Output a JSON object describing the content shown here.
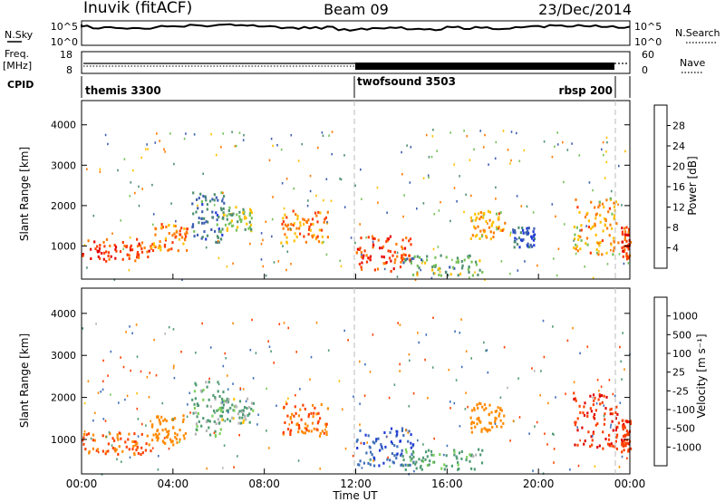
{
  "header": {
    "station": "Inuvik (fitACF)",
    "beam": "Beam 09",
    "date": "23/Dec/2014"
  },
  "top_panels": {
    "nsky_label": "N.Sky",
    "nsky_ticks": [
      "10^5",
      "10^0"
    ],
    "nsearch_label": "N.Search",
    "nsearch_ticks": [
      "10^5",
      "10^0"
    ],
    "freq_label": "Freq.",
    "freq_unit": "[MHz]",
    "freq_ticks": [
      "18",
      "8"
    ],
    "nave_label": "Nave",
    "nave_ticks": [
      "60",
      "0"
    ],
    "cpid_label": "CPID",
    "cpid_segments": [
      {
        "name": "themis 3300",
        "start_h": 0,
        "end_h": 12
      },
      {
        "name": "twofsound 3503",
        "start_h": 12,
        "end_h": 23.7
      },
      {
        "name": "rbsp 200",
        "start_h": 23.7,
        "end_h": 24
      }
    ]
  },
  "power_colorbar": {
    "label": "Power [dB]",
    "ticks": [
      "4",
      "8",
      "12",
      "16",
      "20",
      "24",
      "28"
    ],
    "colors": [
      "#1f3ad6",
      "#3f5fb0",
      "#4e8f70",
      "#77c25a",
      "#ffc000",
      "#ff7a00",
      "#ff3a00",
      "#e60000"
    ]
  },
  "velocity_colorbar": {
    "label": "Velocity [m s⁻¹]",
    "ticks": [
      "1000",
      "500",
      "100",
      "25",
      "-25",
      "-100",
      "-500",
      "-1000"
    ],
    "colors": [
      "#1f3ad6",
      "#3f6fb8",
      "#4f9a73",
      "#7bd05a",
      "#b5b5b5",
      "#ffc300",
      "#ff8a00",
      "#ff4000",
      "#e00000"
    ]
  },
  "chart_data": [
    {
      "type": "heatmap",
      "title": "Power",
      "xlabel": "",
      "ylabel": "Slant Range [km]",
      "x_unit": "hours UT",
      "xlim": [
        0,
        24
      ],
      "ylim": [
        180,
        4600
      ],
      "yticks": [
        "1000",
        "2000",
        "3000",
        "4000"
      ],
      "blobs": [
        {
          "x": [
            0.0,
            3.0
          ],
          "y": [
            650,
            1200
          ],
          "value": 26
        },
        {
          "x": [
            3.0,
            4.6
          ],
          "y": [
            900,
            1600
          ],
          "value": 22
        },
        {
          "x": [
            4.8,
            6.2
          ],
          "y": [
            1100,
            2400
          ],
          "value": 8
        },
        {
          "x": [
            6.0,
            7.5
          ],
          "y": [
            1400,
            2000
          ],
          "value": 14
        },
        {
          "x": [
            8.7,
            10.8
          ],
          "y": [
            1100,
            1900
          ],
          "value": 22
        },
        {
          "x": [
            12.0,
            14.5
          ],
          "y": [
            400,
            1300
          ],
          "value": 26
        },
        {
          "x": [
            14.0,
            17.5
          ],
          "y": [
            300,
            800
          ],
          "value": 12
        },
        {
          "x": [
            17.0,
            18.5
          ],
          "y": [
            1200,
            1900
          ],
          "value": 20
        },
        {
          "x": [
            18.8,
            19.8
          ],
          "y": [
            1000,
            1500
          ],
          "value": 6
        },
        {
          "x": [
            21.5,
            23.5
          ],
          "y": [
            800,
            2200
          ],
          "value": 20
        },
        {
          "x": [
            23.6,
            24.0
          ],
          "y": [
            700,
            1500
          ],
          "value": 26
        }
      ]
    },
    {
      "type": "heatmap",
      "title": "Velocity",
      "xlabel": "Time UT",
      "ylabel": "Slant Range [km]",
      "x_unit": "hours UT",
      "xlim": [
        0,
        24
      ],
      "ylim": [
        180,
        4600
      ],
      "xticks": [
        "00:00",
        "04:00",
        "08:00",
        "12:00",
        "16:00",
        "20:00",
        "00:00"
      ],
      "yticks": [
        "1000",
        "2000",
        "3000",
        "4000"
      ],
      "blobs": [
        {
          "x": [
            0.0,
            3.0
          ],
          "y": [
            650,
            1200
          ],
          "value": -300
        },
        {
          "x": [
            3.0,
            4.6
          ],
          "y": [
            900,
            1600
          ],
          "value": -200
        },
        {
          "x": [
            4.8,
            6.2
          ],
          "y": [
            1100,
            2400
          ],
          "value": 80
        },
        {
          "x": [
            6.0,
            7.5
          ],
          "y": [
            1400,
            2000
          ],
          "value": 60
        },
        {
          "x": [
            8.7,
            10.8
          ],
          "y": [
            1100,
            1900
          ],
          "value": -300
        },
        {
          "x": [
            12.0,
            14.5
          ],
          "y": [
            400,
            1300
          ],
          "value": 600
        },
        {
          "x": [
            14.0,
            17.5
          ],
          "y": [
            300,
            800
          ],
          "value": 120
        },
        {
          "x": [
            17.0,
            18.5
          ],
          "y": [
            1200,
            1900
          ],
          "value": -150
        },
        {
          "x": [
            21.5,
            23.5
          ],
          "y": [
            800,
            2200
          ],
          "value": -700
        },
        {
          "x": [
            23.6,
            24.0
          ],
          "y": [
            700,
            1500
          ],
          "value": -600
        }
      ]
    }
  ]
}
